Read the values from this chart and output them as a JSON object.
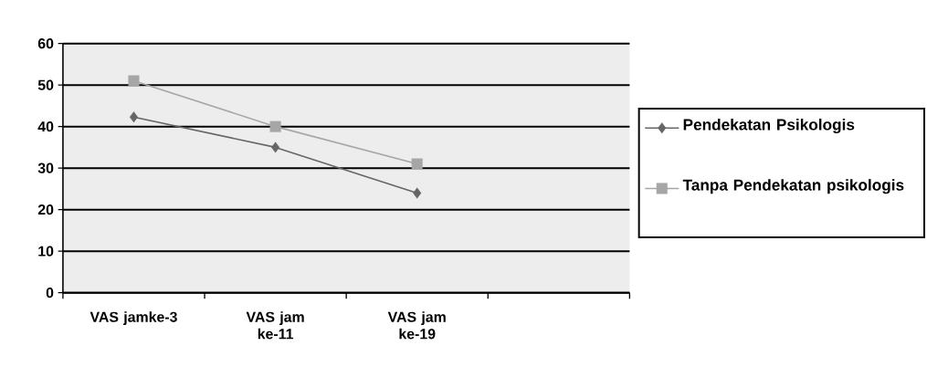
{
  "chart_data": {
    "type": "line",
    "categories": [
      "VAS jamke-3",
      "VAS jam ke-11",
      "VAS jam ke-19",
      null
    ],
    "series": [
      {
        "name": "Pendekatan Psikologis",
        "color": "#666666",
        "marker": "diamond",
        "values": [
          42.3,
          35,
          24,
          null
        ]
      },
      {
        "name": "Tanpa Pendekatan psikologis",
        "color": "#a6a6a6",
        "marker": "square",
        "values": [
          51,
          40,
          31,
          null
        ]
      }
    ],
    "ylim": [
      0,
      60
    ],
    "yticks": [
      0,
      10,
      20,
      30,
      40,
      50,
      60
    ],
    "grid": "y",
    "legend": "right",
    "line_style": "solid"
  }
}
